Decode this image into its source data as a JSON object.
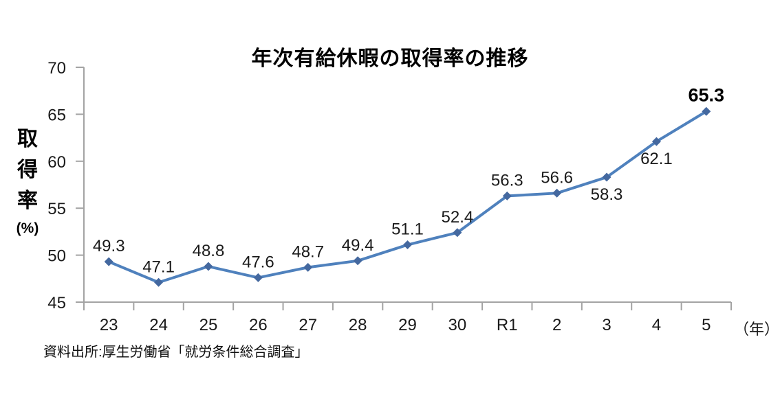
{
  "chart_data": {
    "type": "line",
    "title": "年次有給休暇の取得率の推移",
    "categories": [
      "23",
      "24",
      "25",
      "26",
      "27",
      "28",
      "29",
      "30",
      "R1",
      "2",
      "3",
      "4",
      "5"
    ],
    "values": [
      49.3,
      47.1,
      48.8,
      47.6,
      48.7,
      49.4,
      51.1,
      52.4,
      56.3,
      56.6,
      58.3,
      62.1,
      65.3
    ],
    "data_labels": [
      "49.3",
      "47.1",
      "48.8",
      "47.6",
      "48.7",
      "49.4",
      "51.1",
      "52.4",
      "56.3",
      "56.6",
      "58.3",
      "62.1",
      "65.3"
    ],
    "label_positions": [
      "above",
      "above",
      "above",
      "above",
      "above",
      "above",
      "above",
      "above",
      "above",
      "above",
      "below",
      "below",
      "above"
    ],
    "emphasized_index": 12,
    "ylabel": "取得率",
    "y_unit": "(%)",
    "xlabel": "",
    "xlabel_suffix": "（年）",
    "ylim": [
      45,
      70
    ],
    "yticks": [
      45,
      50,
      55,
      60,
      65,
      70
    ],
    "ytick_step": 5,
    "grid": false,
    "legend_position": "none",
    "line_color": "#4F81BD",
    "marker_color": "#44689F",
    "marker_shape": "diamond",
    "axis_color": "#A3A3A3",
    "source": "資料出所:厚生労働省「就労条件総合調査」"
  }
}
